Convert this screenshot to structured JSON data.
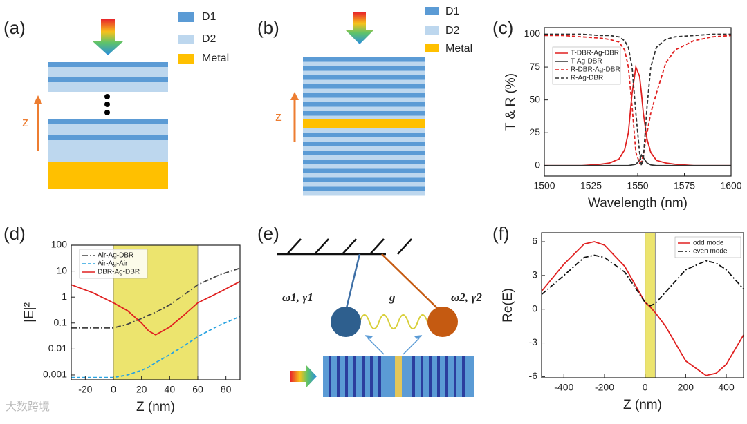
{
  "panels": [
    "(a)",
    "(b)",
    "(c)",
    "(d)",
    "(e)",
    "(f)"
  ],
  "diagrams": {
    "legend": [
      "D1",
      "D2",
      "Metal"
    ],
    "axis_label": "z",
    "coupling": {
      "left": "ω1, γ1",
      "center": "g",
      "right": "ω2, γ2"
    }
  },
  "watermark": "大数跨境",
  "chart_data": [
    {
      "type": "line",
      "ylabel": "T & R (%)",
      "xlabel": "Wavelength (nm)",
      "legend": "upper left",
      "x": [
        1500,
        1510,
        1520,
        1530,
        1535,
        1540,
        1543,
        1545,
        1547,
        1549,
        1551,
        1552,
        1553,
        1555,
        1557,
        1560,
        1565,
        1570,
        1580,
        1590,
        1600
      ],
      "series": [
        {
          "name": "T-DBR-Ag-DBR",
          "color": "#e02020",
          "dash": "solid",
          "values": [
            0,
            0,
            0,
            1,
            2,
            5,
            12,
            25,
            55,
            75,
            68,
            55,
            40,
            20,
            10,
            4,
            2,
            1,
            0,
            0,
            0
          ]
        },
        {
          "name": "T-Ag-DBR",
          "color": "#333333",
          "dash": "solid",
          "values": [
            0,
            0,
            0,
            0,
            0,
            0,
            0,
            0,
            0.5,
            1,
            4,
            8,
            6,
            2,
            0.5,
            0,
            0,
            0,
            0,
            0,
            0
          ]
        },
        {
          "name": "R-DBR-Ag-DBR",
          "color": "#e02020",
          "dash": "dashed",
          "values": [
            99,
            99,
            98,
            97,
            96,
            94,
            88,
            75,
            45,
            10,
            2,
            3,
            8,
            25,
            40,
            55,
            78,
            88,
            95,
            98,
            99
          ]
        },
        {
          "name": "R-Ag-DBR",
          "color": "#333333",
          "dash": "dashed",
          "values": [
            100,
            100,
            100,
            99,
            99,
            98,
            95,
            90,
            75,
            40,
            10,
            0,
            5,
            45,
            75,
            90,
            96,
            98,
            99,
            100,
            100
          ]
        }
      ],
      "xlim": [
        1500,
        1600
      ],
      "xticks": [
        1500,
        1525,
        1550,
        1575,
        1600
      ],
      "ylim": [
        -8,
        105
      ],
      "yticks": [
        0,
        25,
        50,
        75,
        100
      ]
    },
    {
      "type": "line",
      "ylabel": "|E|²",
      "xlabel": "Z (nm)",
      "legend": "upper left",
      "log_y": true,
      "shade": {
        "x": [
          0,
          60
        ],
        "color": "#ece46e"
      },
      "x": [
        -30,
        -15,
        0,
        10,
        20,
        25,
        30,
        40,
        50,
        60,
        75,
        90
      ],
      "series": [
        {
          "name": "Air-Ag-DBR",
          "color": "#444444",
          "dash": "dashdot",
          "values": [
            0.065,
            0.065,
            0.065,
            0.09,
            0.15,
            0.2,
            0.26,
            0.5,
            1.2,
            3,
            7,
            13
          ]
        },
        {
          "name": "Air-Ag-Air",
          "color": "#29a3e0",
          "dash": "dashed",
          "values": [
            0.0008,
            0.0008,
            0.0008,
            0.001,
            0.0015,
            0.002,
            0.003,
            0.006,
            0.013,
            0.03,
            0.08,
            0.18
          ]
        },
        {
          "name": "DBR-Ag-DBR",
          "color": "#e02020",
          "dash": "solid",
          "values": [
            3,
            1.5,
            0.6,
            0.3,
            0.1,
            0.05,
            0.035,
            0.07,
            0.2,
            0.6,
            1.5,
            4
          ]
        }
      ],
      "xlim": [
        -30,
        90
      ],
      "xticks": [
        -20,
        0,
        20,
        40,
        60,
        80
      ],
      "ylim": [
        0.00065,
        100
      ],
      "yticks": [
        0.001,
        0.01,
        0.1,
        1,
        10,
        100
      ]
    },
    {
      "type": "line",
      "ylabel": "Re(E)",
      "xlabel": "Z (nm)",
      "legend": "upper right",
      "shade": {
        "x": [
          0,
          50
        ],
        "color": "#ece46e"
      },
      "x": [
        -510,
        -400,
        -300,
        -250,
        -200,
        -100,
        0,
        25,
        50,
        100,
        200,
        300,
        350,
        400,
        485
      ],
      "series": [
        {
          "name": "odd mode",
          "color": "#e02020",
          "dash": "solid",
          "values": [
            1.6,
            4,
            5.8,
            6,
            5.7,
            3.8,
            0.6,
            0.2,
            -0.3,
            -1.5,
            -4.6,
            -5.9,
            -5.7,
            -4.9,
            -2.3
          ]
        },
        {
          "name": "even mode",
          "color": "#111111",
          "dash": "dashdot",
          "values": [
            1.3,
            3,
            4.6,
            4.8,
            4.6,
            3.3,
            0.6,
            0.3,
            0.5,
            1.5,
            3.5,
            4.3,
            4.1,
            3.5,
            1.8
          ]
        }
      ],
      "xlim": [
        -510,
        485
      ],
      "xticks": [
        -400,
        -200,
        0,
        200,
        400
      ],
      "ylim": [
        -6.1,
        6.8
      ],
      "yticks": [
        -6,
        -3,
        0,
        3,
        6
      ]
    }
  ]
}
